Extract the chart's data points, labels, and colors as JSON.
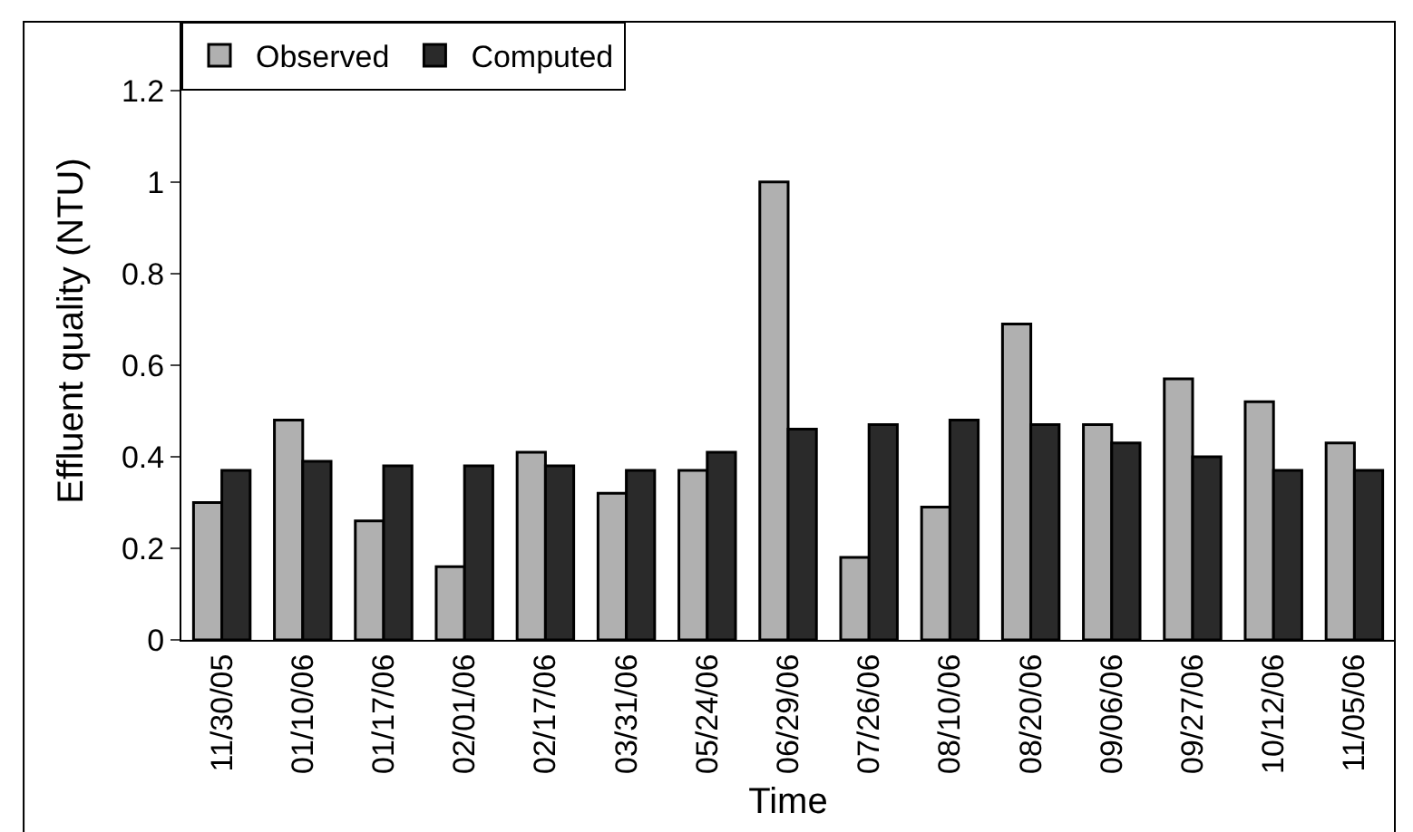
{
  "chart_data": {
    "type": "bar",
    "xlabel": "Time",
    "ylabel": "Effluent quality (NTU)",
    "categories": [
      "11/30/05",
      "01/10/06",
      "01/17/06",
      "02/01/06",
      "02/17/06",
      "03/31/06",
      "05/24/06",
      "06/29/06",
      "07/26/06",
      "08/10/06",
      "08/20/06",
      "09/06/06",
      "09/27/06",
      "10/12/06",
      "11/05/06"
    ],
    "series": [
      {
        "name": "Observed",
        "color": "#b0b0b0",
        "values": [
          0.3,
          0.48,
          0.26,
          0.16,
          0.41,
          0.32,
          0.37,
          1.0,
          0.18,
          0.29,
          0.69,
          0.47,
          0.57,
          0.52,
          0.43
        ]
      },
      {
        "name": "Computed",
        "color": "#2a2a2a",
        "values": [
          0.37,
          0.39,
          0.38,
          0.38,
          0.38,
          0.37,
          0.41,
          0.46,
          0.47,
          0.48,
          0.47,
          0.43,
          0.4,
          0.37,
          0.37
        ]
      }
    ],
    "ylim": [
      0,
      1.35
    ],
    "yticks": [
      {
        "value": 0,
        "label": "0"
      },
      0.2,
      0.4,
      0.6,
      0.8,
      {
        "value": 1,
        "label": "1"
      },
      1.2
    ],
    "grid": false,
    "legend": "top left"
  }
}
